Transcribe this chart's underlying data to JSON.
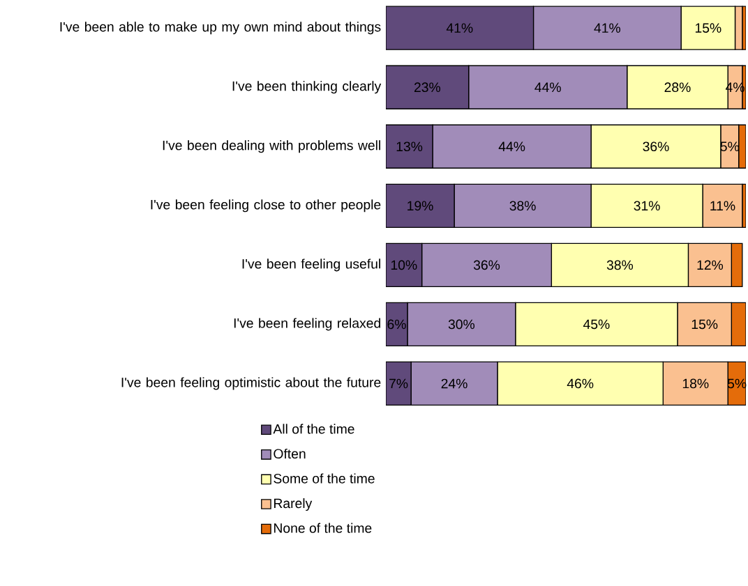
{
  "chart_data": {
    "type": "bar",
    "orientation": "horizontal",
    "stacked": true,
    "legend": "bottom",
    "tick_labels": "y",
    "categories": [
      "I've been able to make up my own mind about things",
      "I've been thinking clearly",
      "I've been dealing with problems well",
      "I've been feeling close to other people",
      "I've been feeling useful",
      "I've been feeling relaxed",
      "I've been feeling optimistic about the future"
    ],
    "series": [
      {
        "name": "All of the time",
        "color": "#604a7b",
        "values": [
          41,
          23,
          13,
          19,
          10,
          6,
          7
        ],
        "value_labels": [
          "41%",
          "23%",
          "13%",
          "19%",
          "10%",
          "6%",
          "7%"
        ]
      },
      {
        "name": "Often",
        "color": "#a18cb9",
        "values": [
          41,
          44,
          44,
          38,
          36,
          30,
          24
        ],
        "value_labels": [
          "41%",
          "44%",
          "44%",
          "38%",
          "36%",
          "30%",
          "24%"
        ]
      },
      {
        "name": "Some of the time",
        "color": "#ffffb0",
        "values": [
          15,
          28,
          36,
          31,
          38,
          45,
          46
        ],
        "value_labels": [
          "15%",
          "28%",
          "36%",
          "31%",
          "38%",
          "45%",
          "46%"
        ]
      },
      {
        "name": "Rarely",
        "color": "#fac090",
        "values": [
          2,
          4,
          5,
          11,
          12,
          15,
          18
        ],
        "value_labels": [
          null,
          "4%",
          "5%",
          "11%",
          "12%",
          "15%",
          "18%"
        ]
      },
      {
        "name": "None of the time",
        "color": "#e46c0a",
        "values": [
          1,
          1,
          2,
          1,
          3,
          4,
          5
        ],
        "value_labels": [
          null,
          null,
          null,
          null,
          null,
          null,
          "5%"
        ]
      }
    ]
  }
}
